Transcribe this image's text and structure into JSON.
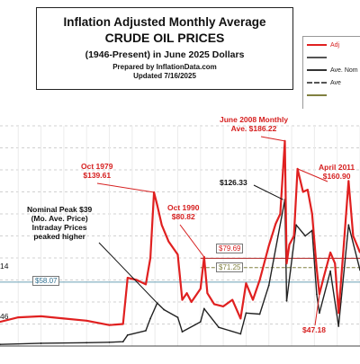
{
  "header": {
    "line1": "Inflation Adjusted Monthly Average",
    "line2": "CRUDE OIL PRICES",
    "line3": "(1946-Present) in June 2025 Dollars",
    "line4": "Prepared by InflationData.com",
    "line5": "Updated 7/16/2025"
  },
  "colors": {
    "adjusted": "#e02020",
    "nominal": "#222222",
    "avg": "#808040",
    "grid": "#d0d0d0",
    "refline": "#6a9fb5"
  },
  "legend": {
    "items": [
      {
        "label": "Adj",
        "color": "#e02020",
        "style": "solid"
      },
      {
        "label": "",
        "color": "#555555",
        "style": "solid"
      },
      {
        "label": "Ave. Nom",
        "color": "#333333",
        "style": "solid"
      },
      {
        "label": "Ave",
        "color": "#555555",
        "style": "dashed"
      },
      {
        "label": "",
        "color": "#808040",
        "style": "solid"
      }
    ]
  },
  "annotations": {
    "oct1979": {
      "label": "Oct 1979",
      "value": "$139.61"
    },
    "oct1990": {
      "label": "Oct 1990",
      "value": "$80.82"
    },
    "june2008": {
      "label": "June 2008 Monthly",
      "value": "Ave. $186.22"
    },
    "april2011": {
      "label": "April 2011",
      "value": "$160.90"
    },
    "nominal_peak": {
      "line1": "Nominal Peak $39",
      "line2": "(Mo. Ave. Price)",
      "line3": "Intraday Prices",
      "line4": "peaked higher"
    },
    "nom2008": "$126.33",
    "low_2016": "$47.18",
    "level_79": "$79.69",
    "level_71": "$71.25",
    "level_58": "$58.07",
    "left_14": "14",
    "left_46": "46"
  },
  "chart_data": {
    "type": "line",
    "title": "Inflation Adjusted Monthly Average CRUDE OIL PRICES",
    "subtitle": "(1946-Present) in June 2025 Dollars",
    "xlabel": "",
    "ylabel": "",
    "x_range": [
      1946,
      2025
    ],
    "y_range": [
      0,
      200
    ],
    "grid": true,
    "legend_position": "top-right",
    "series": [
      {
        "name": "Adj",
        "x": [
          1946,
          1950,
          1955,
          1960,
          1965,
          1970,
          1973,
          1974,
          1976,
          1978,
          1979,
          1979.8,
          1980.5,
          1981.5,
          1983,
          1985,
          1986,
          1987,
          1988,
          1990,
          1990.8,
          1991.5,
          1993,
          1995,
          1997,
          1998.8,
          2000,
          2001.5,
          2003,
          2005,
          2006.5,
          2007.5,
          2008.5,
          2008.9,
          2009.5,
          2010.5,
          2011.3,
          2012.5,
          2013.5,
          2014.5,
          2015.5,
          2016.1,
          2017,
          2018.5,
          2019.5,
          2020.3,
          2021.5,
          2022.5,
          2023.5,
          2025
        ],
        "values": [
          22,
          26,
          27,
          25,
          23,
          19,
          20,
          62,
          60,
          56,
          80,
          139.61,
          128,
          110,
          95,
          83,
          42,
          48,
          40,
          52,
          80.82,
          48,
          38,
          36,
          42,
          25,
          57,
          42,
          60,
          91,
          111,
          120,
          186.22,
          75,
          92,
          100,
          160.9,
          140,
          142,
          120,
          70,
          47.18,
          62,
          85,
          75,
          30,
          95,
          150,
          100,
          85
        ]
      },
      {
        "name": "Ave. Nom",
        "x": [
          1946,
          1955,
          1965,
          1970,
          1973,
          1974,
          1978,
          1979,
          1980.5,
          1982,
          1985,
          1986,
          1990,
          1990.8,
          1994,
          1998.8,
          2000,
          2003,
          2005,
          2008.5,
          2008.9,
          2011,
          2013,
          2014.5,
          2015.5,
          2016.1,
          2018.5,
          2020.3,
          2022.5,
          2025
        ],
        "values": [
          1.5,
          2.5,
          3,
          3.4,
          3.9,
          10,
          14,
          25,
          39,
          33,
          26,
          13,
          22,
          34,
          17,
          11,
          30,
          29,
          55,
          133,
          41,
          110,
          100,
          105,
          47,
          30,
          68,
          18,
          110,
          69
        ]
      }
    ],
    "reference_lines": [
      {
        "label": "$79.69",
        "value": 79.69
      },
      {
        "label": "$71.25",
        "value": 71.25
      },
      {
        "label": "$58.07",
        "value": 58.07
      }
    ]
  }
}
